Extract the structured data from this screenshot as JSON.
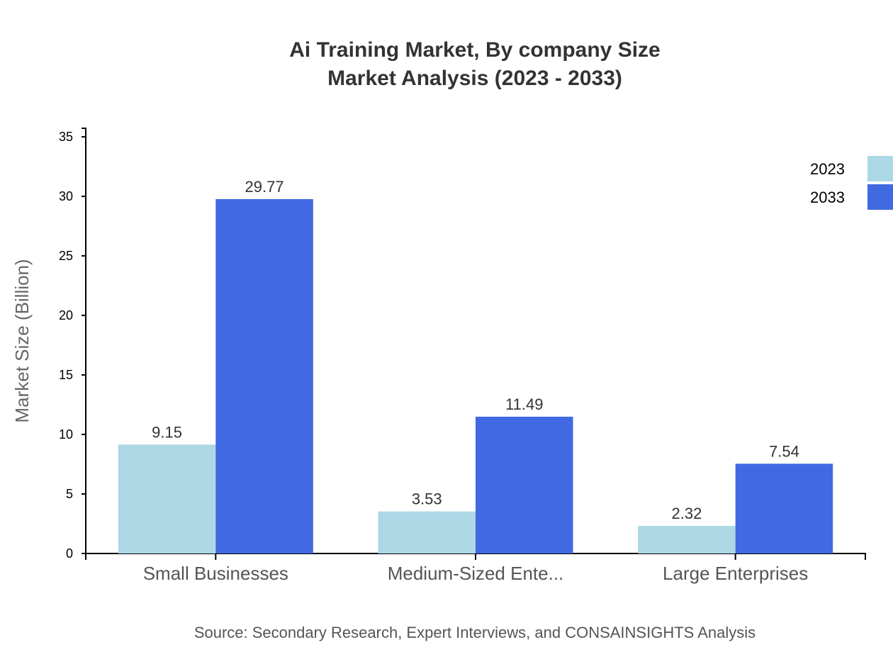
{
  "chart_data": {
    "type": "bar",
    "title": "Ai Training Market, By company Size",
    "subtitle": "Market Analysis (2023 - 2033)",
    "xlabel": "",
    "ylabel": "Market Size (Billion)",
    "ylim": [
      0,
      35.72
    ],
    "yticks": [
      0,
      5,
      10,
      15,
      20,
      25,
      30,
      35
    ],
    "grid": false,
    "legend_position": "top-right",
    "categories": [
      "Small Businesses",
      "Medium-Sized Ente...",
      "Large Enterprises"
    ],
    "series": [
      {
        "name": "2023",
        "color": "#add8e6",
        "values": [
          9.15,
          3.53,
          2.32
        ]
      },
      {
        "name": "2033",
        "color": "#4169e1",
        "values": [
          29.77,
          11.49,
          7.54
        ]
      }
    ],
    "source": "Source: Secondary Research, Expert Interviews, and CONSAINSIGHTS Analysis"
  }
}
